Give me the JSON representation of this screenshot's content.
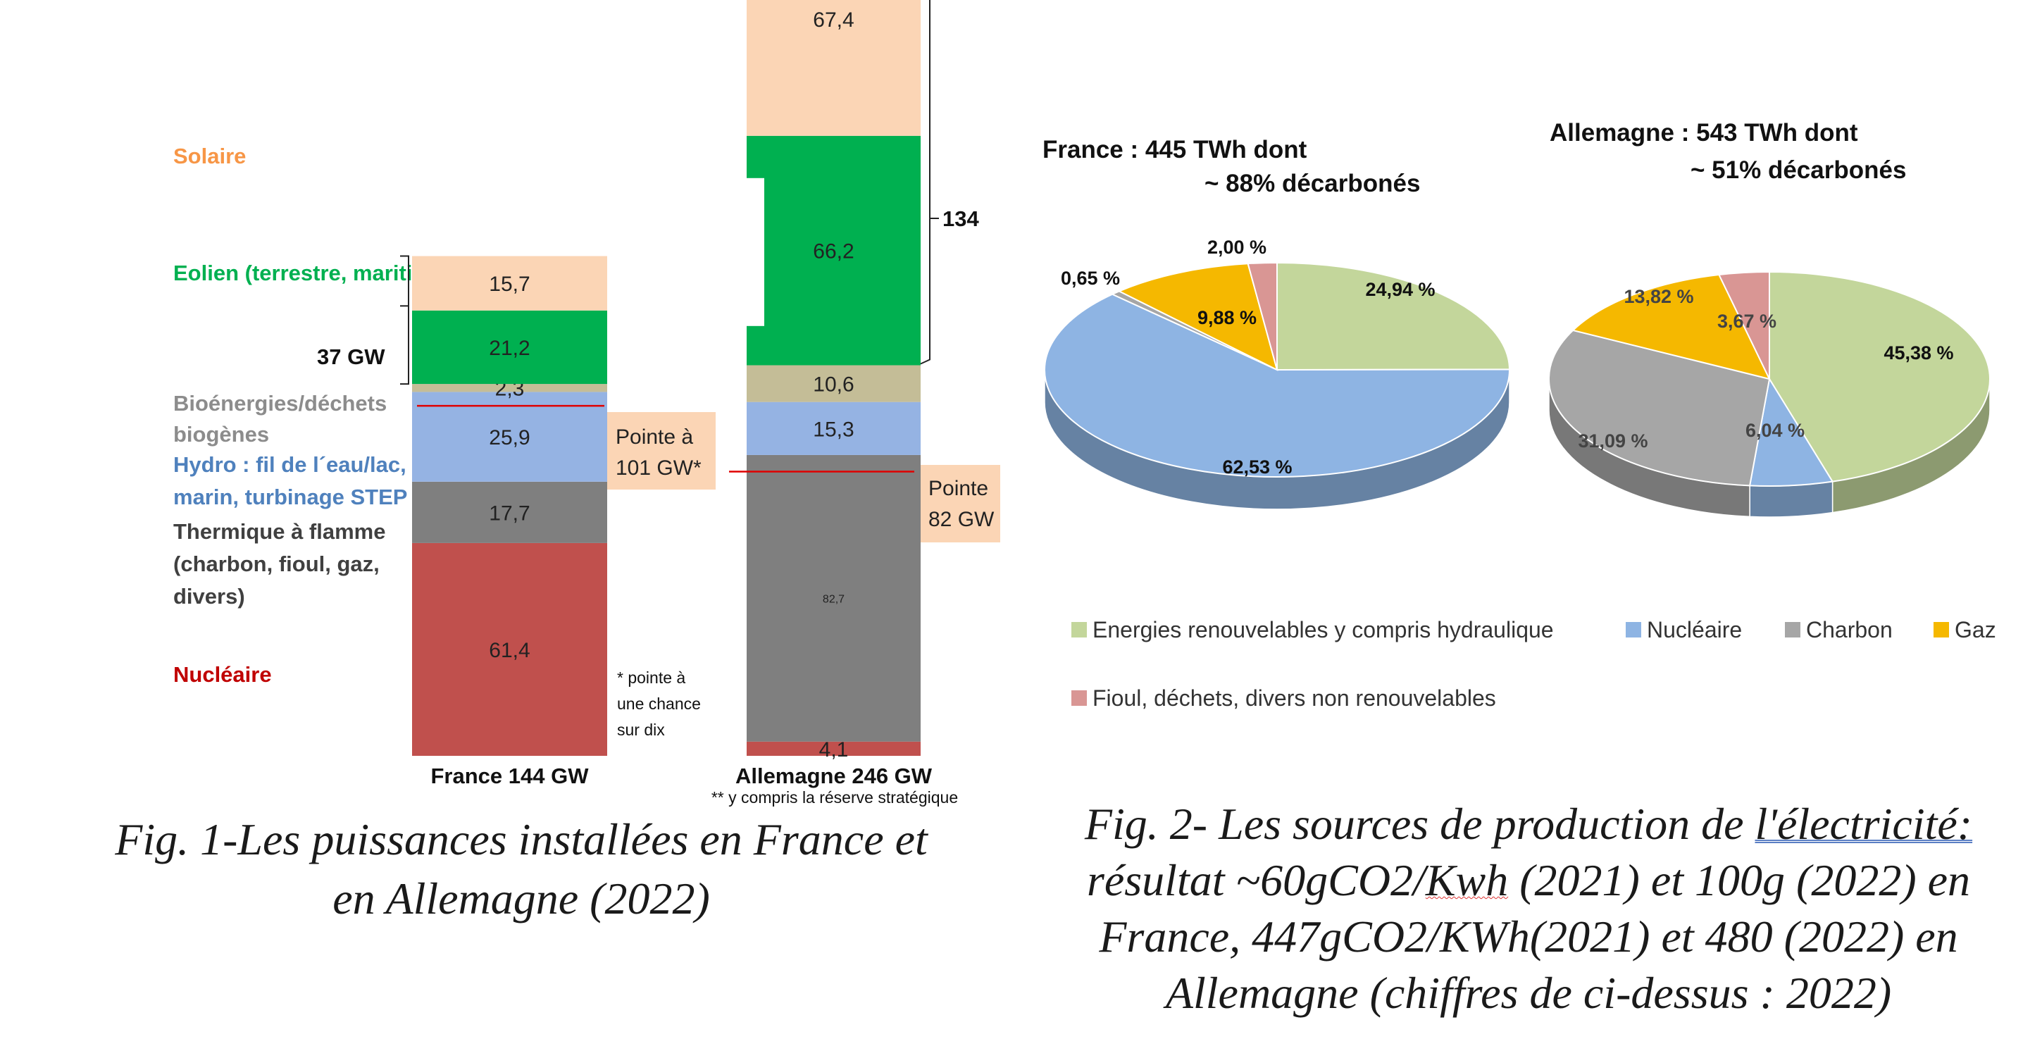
{
  "chart_data": [
    {
      "type": "bar",
      "stacked": true,
      "categories": [
        "France 144 GW",
        "Allemagne 246 GW"
      ],
      "footnote_germany": "** y compris la réserve stratégique",
      "series": [
        {
          "name": "Nucléaire",
          "color": "#c0504d",
          "values": [
            61.4,
            4.1
          ],
          "labels": [
            "61,4",
            "4,1"
          ]
        },
        {
          "name": "Thermique à flamme (charbon, fioul, gaz, divers)",
          "color": "#7f7f7f",
          "values": [
            17.7,
            82.7
          ],
          "labels": [
            "17,7",
            "82,7"
          ]
        },
        {
          "name": "Hydro : fil de l´eau/lac, marin, turbinage STEP",
          "color": "#95b3e3",
          "values": [
            25.9,
            15.3
          ],
          "labels": [
            "25,9",
            "15,3"
          ]
        },
        {
          "name": "Bioénergies/déchets biogènes",
          "color": "#c4bd97",
          "values": [
            2.3,
            10.6
          ],
          "labels": [
            "2,3",
            "10,6"
          ]
        },
        {
          "name": "Eolien (terrestre, maritime)",
          "color": "#00b050",
          "values": [
            21.2,
            66.2
          ],
          "labels": [
            "21,2",
            "66,2"
          ]
        },
        {
          "name": "Solaire",
          "color": "#fbd5b5",
          "values": [
            15.7,
            67.4
          ],
          "labels": [
            "15,7",
            "67,4"
          ]
        }
      ],
      "legend_labels": [
        {
          "lines": [
            "Solaire"
          ],
          "color": "#f79646"
        },
        {
          "lines": [
            "Eolien (terrestre, maritime)"
          ],
          "color": "#00b050"
        },
        {
          "lines": [
            "Bioénergies/déchets",
            "biogènes"
          ],
          "color": "#8c8c8c"
        },
        {
          "lines": [
            "Hydro : fil de l´eau/lac,",
            "marin, turbinage STEP"
          ],
          "color": "#4f81bd"
        },
        {
          "lines": [
            "Thermique à flamme",
            "(charbon, fioul, gaz,",
            "divers)"
          ],
          "color": "#404040"
        },
        {
          "lines": [
            "Nucléaire"
          ],
          "color": "#c00000"
        }
      ],
      "annotations": {
        "france_bracket": "37 GW",
        "germany_bracket": "134",
        "france_peak": {
          "lines": [
            "Pointe à",
            "101 GW*"
          ],
          "value": 101
        },
        "germany_peak": {
          "lines": [
            "Pointe",
            "82 GW"
          ],
          "value": 82
        },
        "france_note": [
          "* pointe à",
          "une chance",
          "sur dix"
        ]
      }
    },
    {
      "type": "pie",
      "title_lines": [
        "France : 445 TWh dont",
        "~ 88% décarbonés"
      ],
      "slices": [
        {
          "name": "Energies renouvelables y compris hydraulique",
          "value": 24.94,
          "label": "24,94 %"
        },
        {
          "name": "Nucléaire",
          "value": 62.53,
          "label": "62,53 %"
        },
        {
          "name": "Charbon",
          "value": 0.65,
          "label": "0,65 %"
        },
        {
          "name": "Gaz",
          "value": 9.88,
          "label": "9,88 %"
        },
        {
          "name": "Fioul, déchets, divers non renouvelables",
          "value": 2.0,
          "label": "2,00 %"
        }
      ]
    },
    {
      "type": "pie",
      "title_lines": [
        "Allemagne : 543 TWh dont",
        "~ 51% décarbonés"
      ],
      "slices": [
        {
          "name": "Energies renouvelables y compris hydraulique",
          "value": 45.38,
          "label": "45,38 %"
        },
        {
          "name": "Nucléaire",
          "value": 6.04,
          "label": "6,04 %"
        },
        {
          "name": "Charbon",
          "value": 31.09,
          "label": "31,09 %"
        },
        {
          "name": "Gaz",
          "value": 13.82,
          "label": "13,82 %"
        },
        {
          "name": "Fioul, déchets, divers non renouvelables",
          "value": 3.67,
          "label": "3,67 %"
        }
      ]
    }
  ],
  "pie_legend": [
    {
      "name": "Energies renouvelables y compris hydraulique",
      "color": "#c3d69b"
    },
    {
      "name": "Nucléaire",
      "color": "#8eb4e3"
    },
    {
      "name": "Charbon",
      "color": "#a6a6a6"
    },
    {
      "name": "Gaz",
      "color": "#f5b800"
    },
    {
      "name": "Fioul, déchets, divers non renouvelables",
      "color": "#d99694"
    }
  ],
  "captions": {
    "fig1": [
      "Fig. 1-Les puissances installées en France et",
      "en Allemagne (2022)"
    ],
    "fig2": {
      "line1_a": "Fig. 2- Les sources de production de ",
      "line1_b": "l'électricité:",
      "line2_a": "résultat ~60gCO2/",
      "line2_b": "Kwh",
      "line2_c": " (2021) et 100g (2022) en",
      "line3": "France, 447gCO2/KWh(2021) et 480 (2022) en",
      "line4": "Allemagne (chiffres de ci-dessus : 2022)"
    }
  }
}
